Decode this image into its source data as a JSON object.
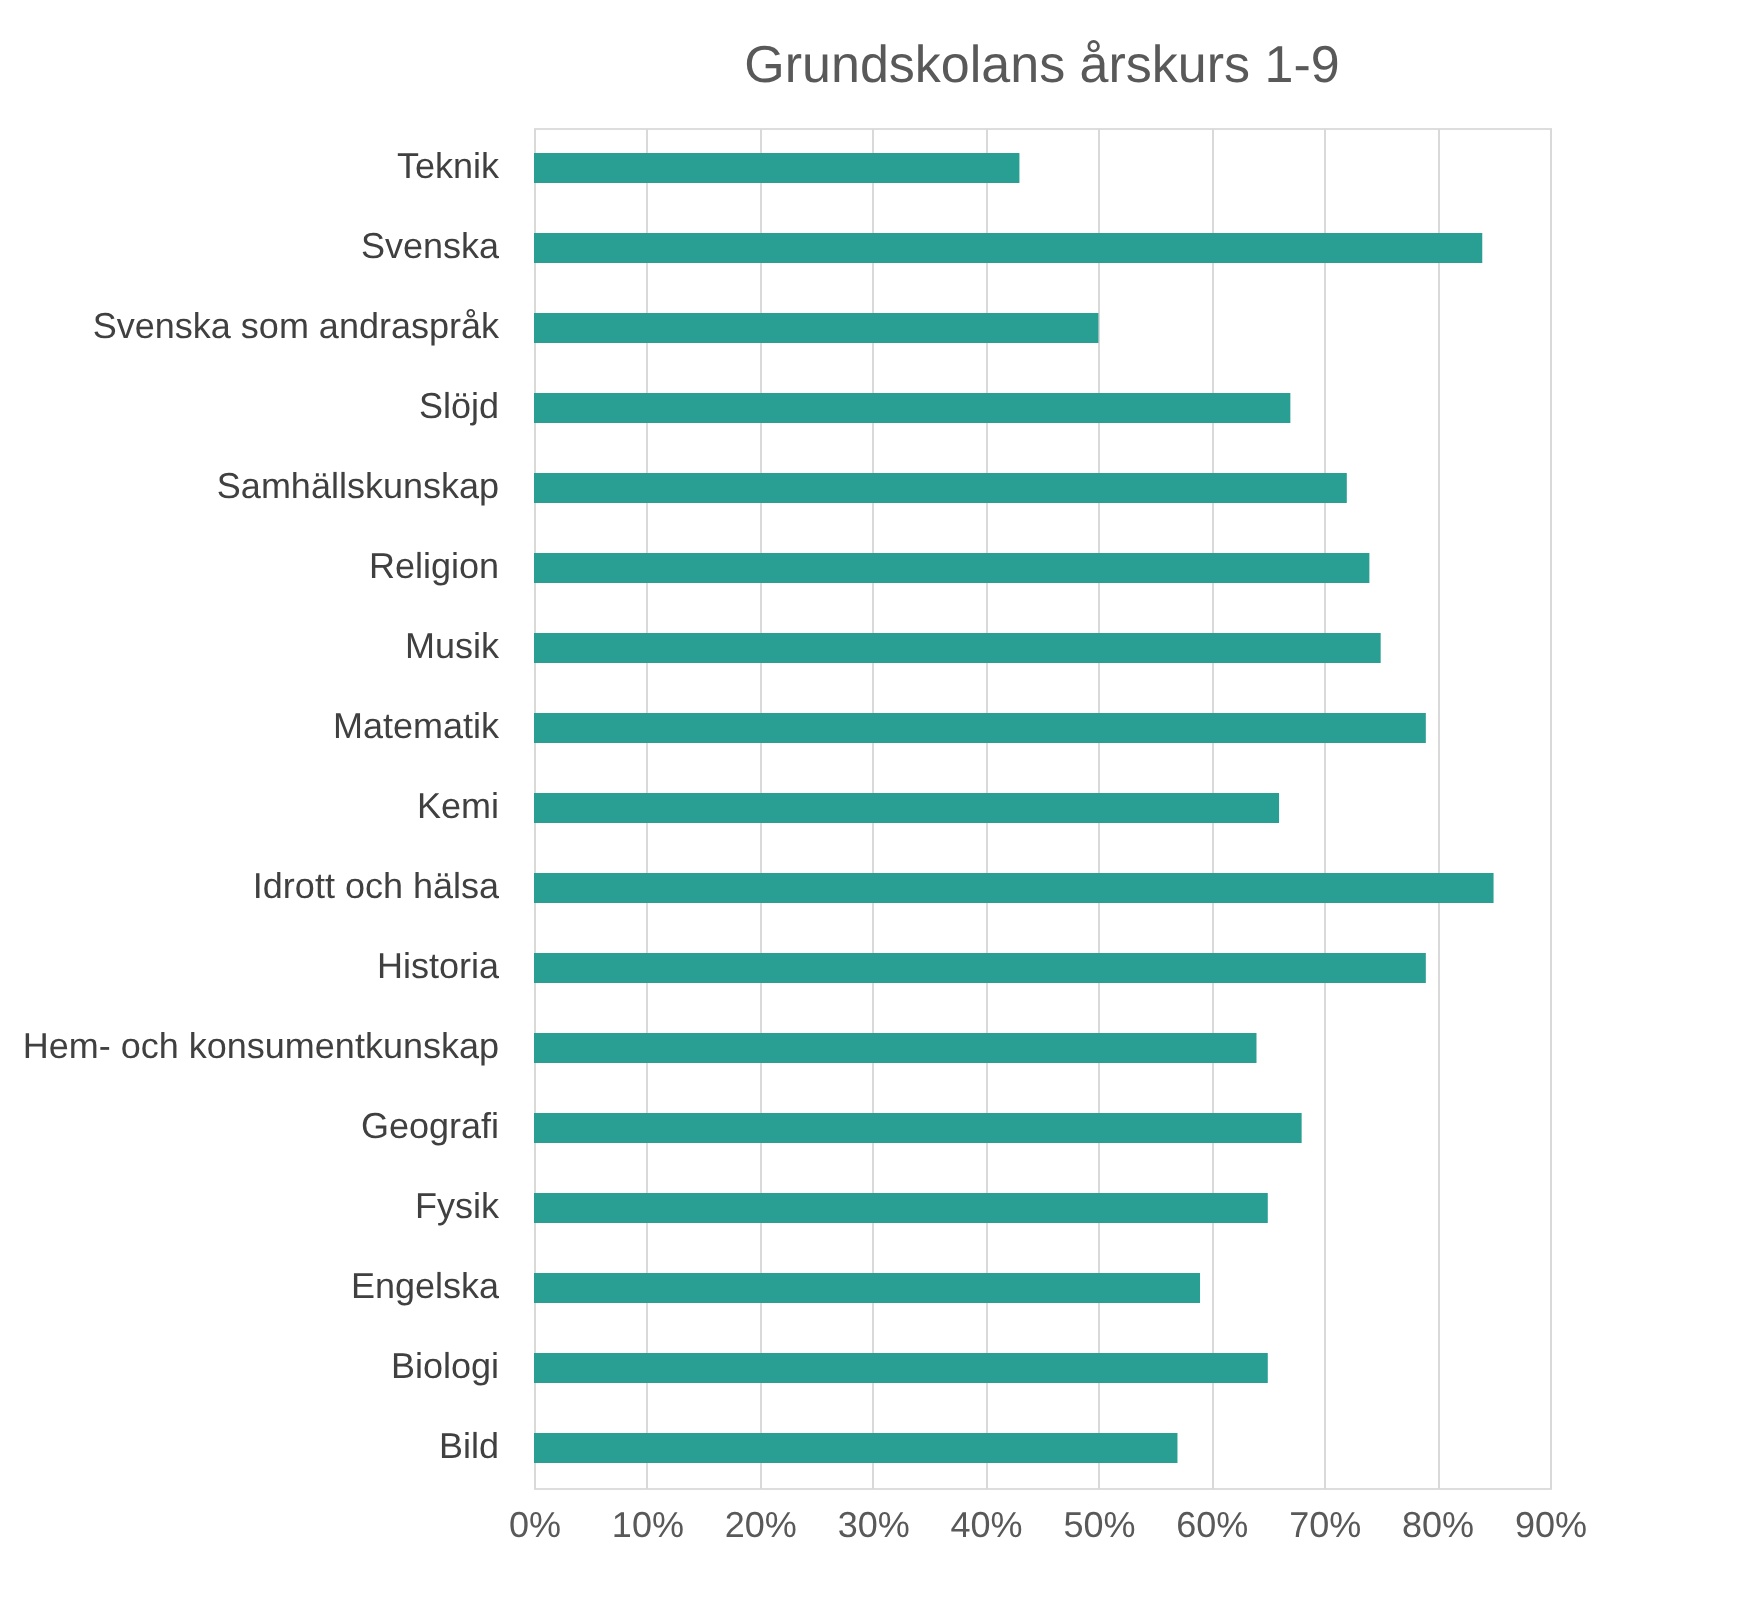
{
  "chart_data": {
    "type": "bar",
    "orientation": "horizontal",
    "title": "Grundskolans årskurs 1-9",
    "categories": [
      "Teknik",
      "Svenska",
      "Svenska som andraspråk",
      "Slöjd",
      "Samhällskunskap",
      "Religion",
      "Musik",
      "Matematik",
      "Kemi",
      "Idrott och hälsa",
      "Historia",
      "Hem- och konsumentkunskap",
      "Geografi",
      "Fysik",
      "Engelska",
      "Biologi",
      "Bild"
    ],
    "values": [
      43,
      84,
      50,
      67,
      72,
      74,
      75,
      79,
      66,
      85,
      79,
      64,
      68,
      65,
      59,
      65,
      57
    ],
    "color": "#299e93",
    "xlim": [
      0,
      90
    ],
    "xticks": [
      {
        "value": 0,
        "label": "0%"
      },
      {
        "value": 10,
        "label": "10%"
      },
      {
        "value": 20,
        "label": "20%"
      },
      {
        "value": 30,
        "label": "30%"
      },
      {
        "value": 40,
        "label": "40%"
      },
      {
        "value": 50,
        "label": "50%"
      },
      {
        "value": 60,
        "label": "60%"
      },
      {
        "value": 70,
        "label": "70%"
      },
      {
        "value": 80,
        "label": "80%"
      },
      {
        "value": 90,
        "label": "90%"
      }
    ],
    "grid": "x"
  }
}
